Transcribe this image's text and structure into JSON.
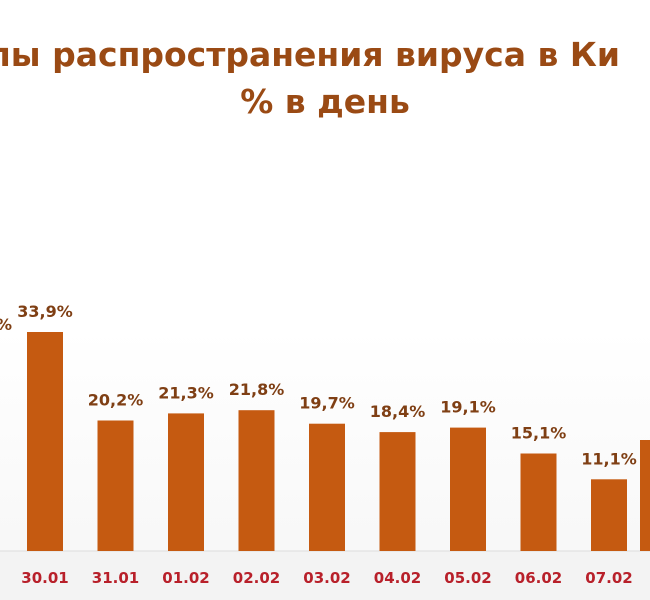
{
  "chart_data": {
    "type": "bar",
    "title_line1": "пы распространения вируса в Ки",
    "title_line2": "% в день",
    "colors": {
      "bar": "#c55a11",
      "title": "#9a4a14",
      "data_label": "#7f3f14",
      "category_label": "#b8202a",
      "axis_band": "#dcdcdc"
    },
    "partial_left_label": "%",
    "categories": [
      "30.01",
      "31.01",
      "01.02",
      "02.02",
      "03.02",
      "04.02",
      "05.02",
      "06.02",
      "07.02"
    ],
    "values": [
      33.9,
      20.2,
      21.3,
      21.8,
      19.7,
      18.4,
      19.1,
      15.1,
      11.1
    ],
    "data_labels": [
      "33,9%",
      "20,2%",
      "21,3%",
      "21,8%",
      "19,7%",
      "18,4%",
      "19,1%",
      "15,1%",
      "11,1%"
    ]
  }
}
